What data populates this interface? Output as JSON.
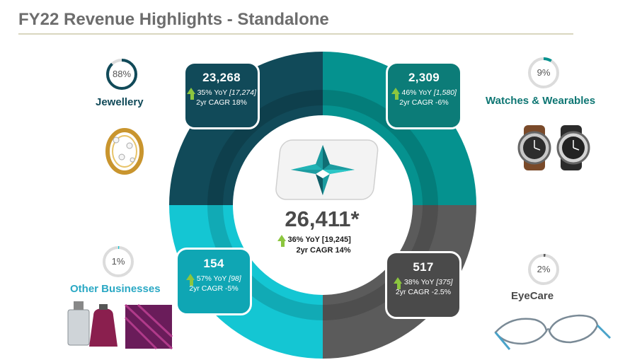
{
  "title": "FY22 Revenue Highlights - Standalone",
  "center": {
    "total": "26,411*",
    "yoy": "36% YoY [19,245]",
    "cagr": "2yr CAGR 14%"
  },
  "colors": {
    "jewellery": "#114a59",
    "watches": "#05928f",
    "other": "#14c6d3",
    "eyecare": "#5b5b5b",
    "accent_green": "#8cc63f",
    "label_blue": "#2aa8c4",
    "label_teal": "#0e7673"
  },
  "segments": [
    {
      "key": "jewellery",
      "value": "23,268",
      "yoy_prefix": "35% YoY ",
      "yoy_base": "[17,274]",
      "cagr": "2yr CAGR 18%"
    },
    {
      "key": "watches",
      "value": "2,309",
      "yoy_prefix": "46% YoY ",
      "yoy_base": "[1,580]",
      "cagr": "2yr CAGR -6%"
    },
    {
      "key": "other",
      "value": "154",
      "yoy_prefix": "57% YoY ",
      "yoy_base": "[98]",
      "cagr": "2yr CAGR -5%"
    },
    {
      "key": "eyecare",
      "value": "517",
      "yoy_prefix": "38% YoY ",
      "yoy_base": "[375]",
      "cagr": "2yr CAGR -2.5%"
    }
  ],
  "categories": {
    "jewellery": {
      "label": "Jewellery",
      "share": "88%",
      "share_value": 0.88
    },
    "watches": {
      "label": "Watches & Wearables",
      "share": "9%",
      "share_value": 0.09
    },
    "other": {
      "label": "Other Businesses",
      "share": "1%",
      "share_value": 0.01
    },
    "eyecare": {
      "label": "EyeCare",
      "share": "2%",
      "share_value": 0.02
    }
  },
  "icons": {
    "logo": "star-logo-icon",
    "jewellery": "ring-icon",
    "watches": "watches-icon",
    "other": "perfume-saree-icon",
    "eyecare": "eyeglasses-icon"
  }
}
